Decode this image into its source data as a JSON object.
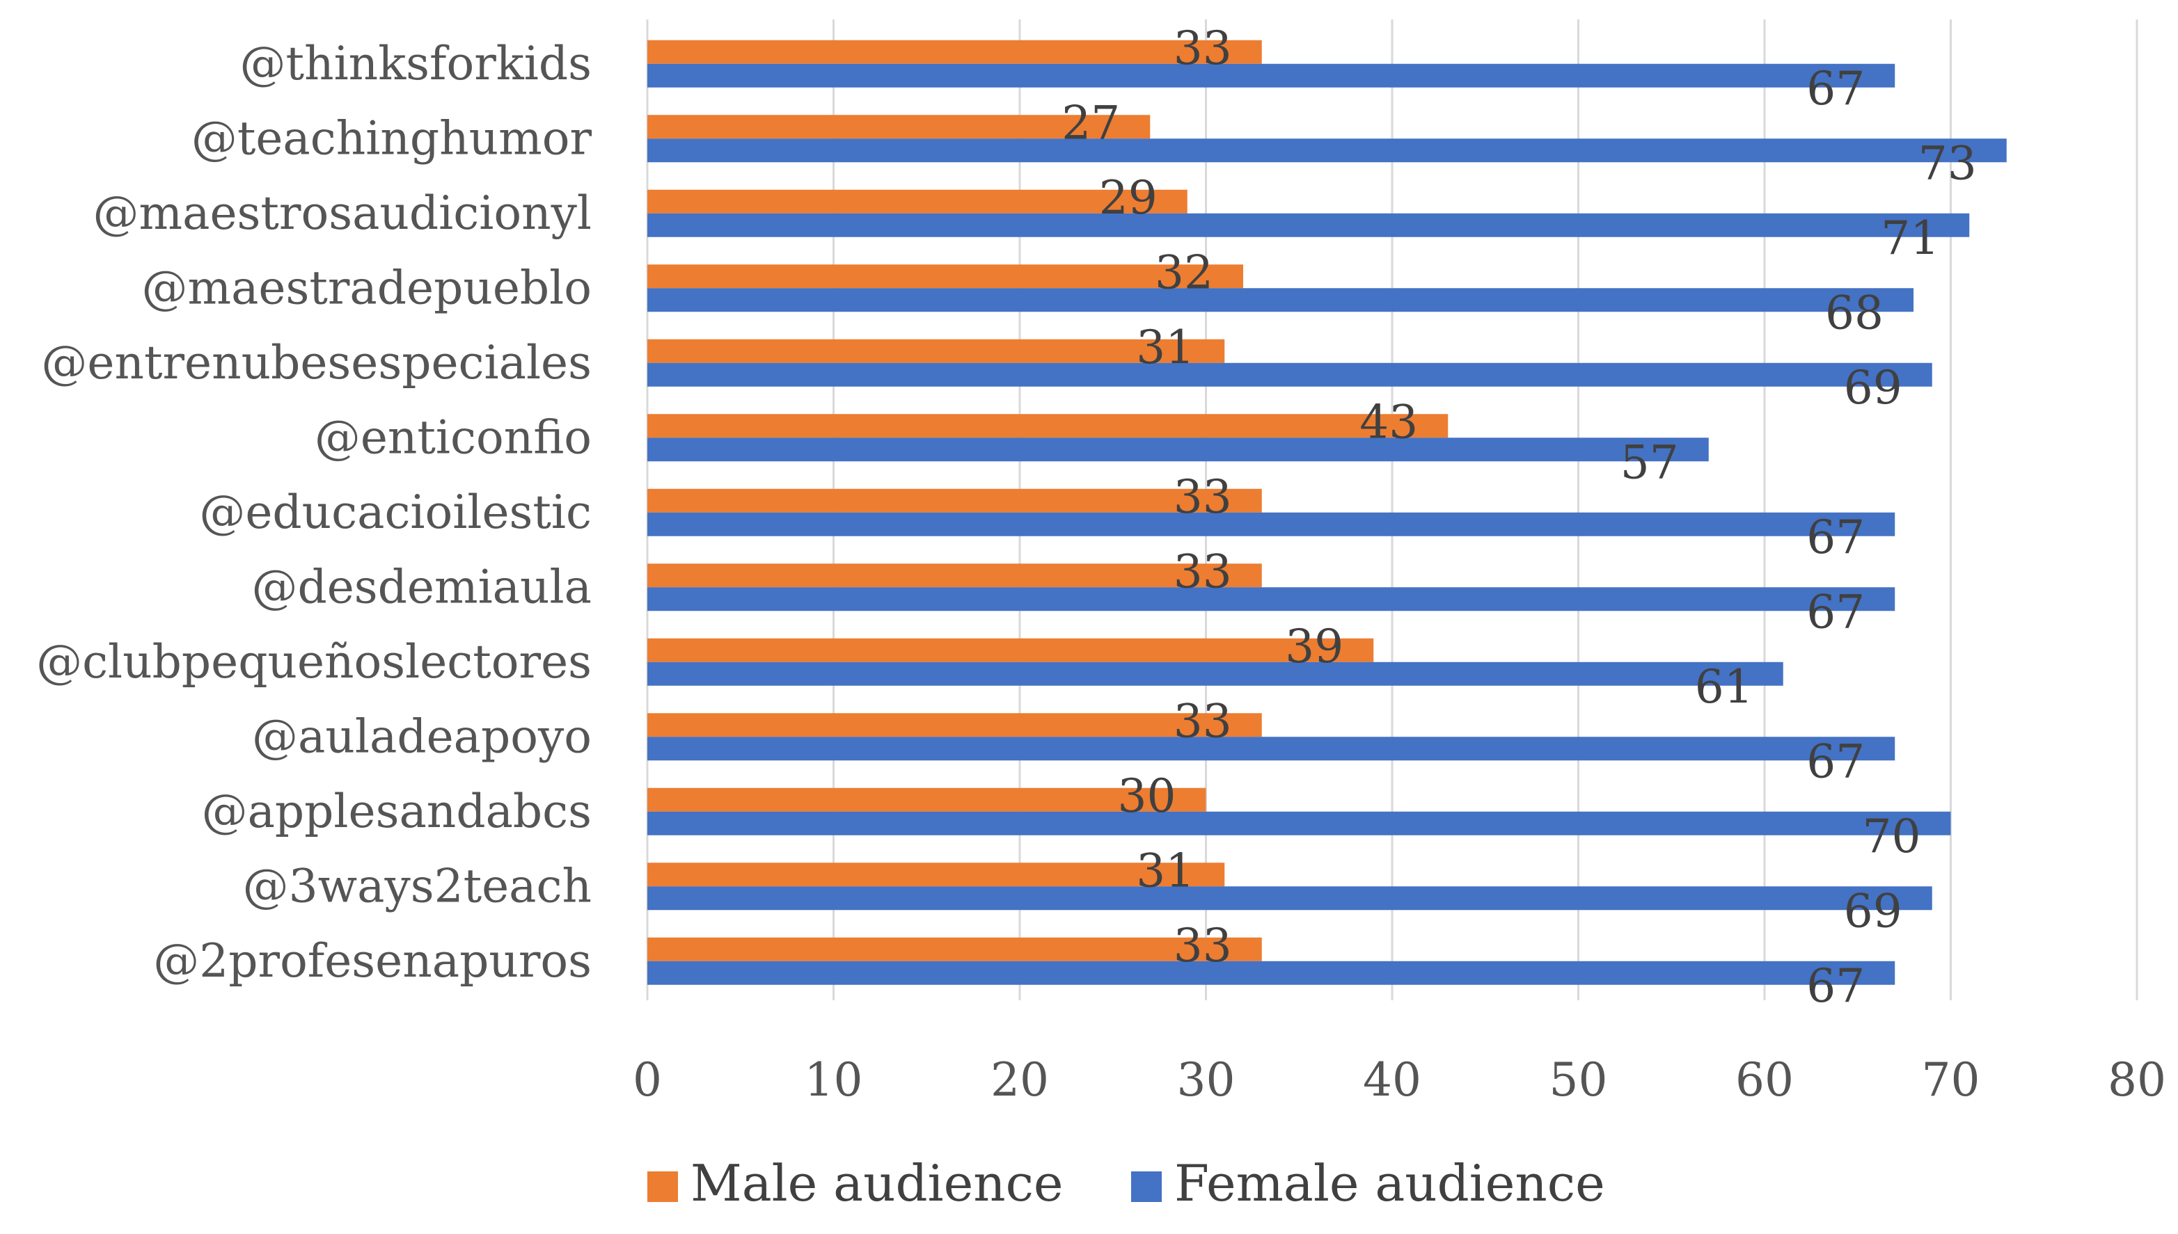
{
  "chart_data": {
    "type": "bar",
    "orientation": "horizontal",
    "title": "",
    "xlabel": "",
    "ylabel": "",
    "xlim": [
      0,
      80
    ],
    "ticks": [
      0,
      10,
      20,
      30,
      40,
      50,
      60,
      70,
      80
    ],
    "grid": true,
    "legend_position": "bottom",
    "categories": [
      "@thinksforkids",
      "@teachinghumor",
      "@maestrosaudicionyl",
      "@maestradepueblo",
      "@entrenubesespeciales",
      "@enticonfio",
      "@educacioilestic",
      "@desdemiaula",
      "@clubpequeñoslectores",
      "@auladeapoyo",
      "@applesandabcs",
      "@3ways2teach",
      "@2profesenapuros"
    ],
    "series": [
      {
        "name": "Male audience",
        "color": "#ED7D31",
        "values": [
          33,
          27,
          29,
          32,
          31,
          43,
          33,
          33,
          39,
          33,
          30,
          31,
          33
        ]
      },
      {
        "name": "Female audience",
        "color": "#4472C4",
        "values": [
          67,
          73,
          71,
          68,
          69,
          57,
          67,
          67,
          61,
          67,
          70,
          69,
          67
        ]
      }
    ]
  }
}
